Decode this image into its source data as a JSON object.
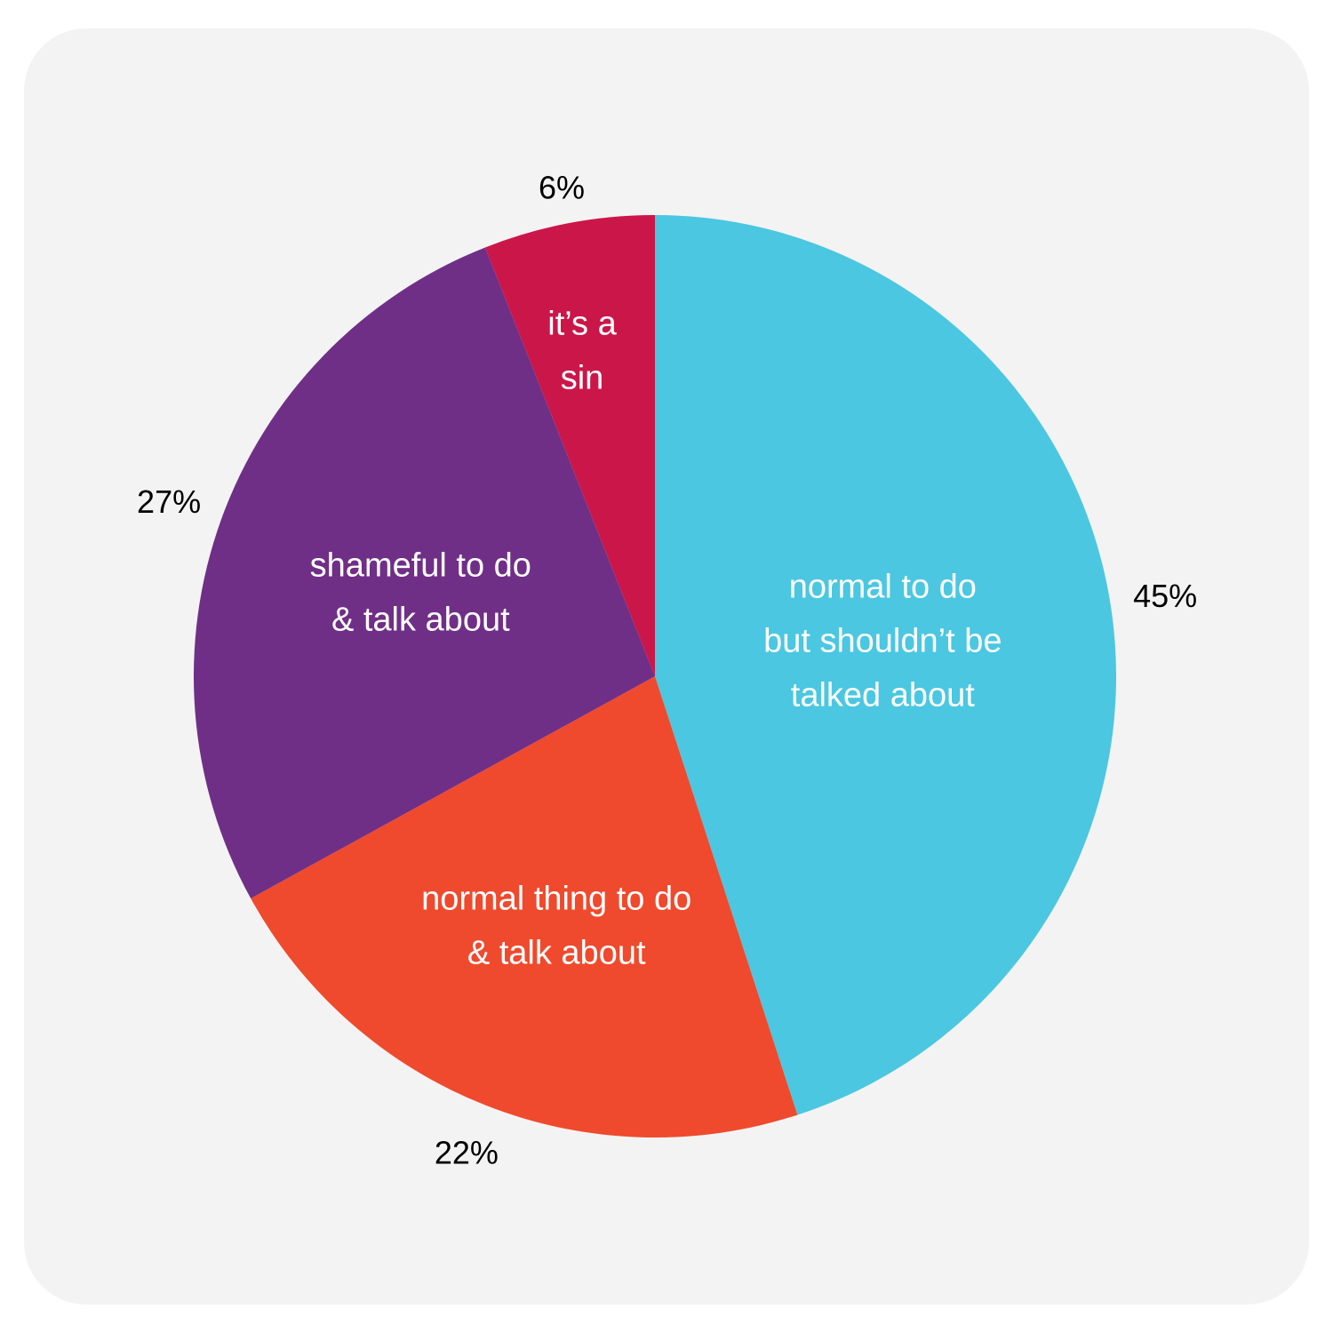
{
  "chart_data": {
    "type": "pie",
    "title": "",
    "slices": [
      {
        "label": "normal to do but shouldn’t be talked about",
        "label_lines": [
          "normal to do",
          "but shouldn’t be",
          "talked about"
        ],
        "value": 45,
        "value_label": "45%",
        "color": "#4bc7e1"
      },
      {
        "label": "normal thing to do & talk about",
        "label_lines": [
          "normal thing to do",
          "& talk about"
        ],
        "value": 22,
        "value_label": "22%",
        "color": "#ef4a2d"
      },
      {
        "label": "shameful to do & talk about",
        "label_lines": [
          "shameful to do",
          "& talk about"
        ],
        "value": 27,
        "value_label": "27%",
        "color": "#702f87"
      },
      {
        "label": "it’s a sin",
        "label_lines": [
          "it’s a",
          "sin"
        ],
        "value": 6,
        "value_label": "6%",
        "color": "#cb1649"
      }
    ],
    "start": "12 o'clock",
    "direction": "clockwise",
    "legend": "none"
  }
}
